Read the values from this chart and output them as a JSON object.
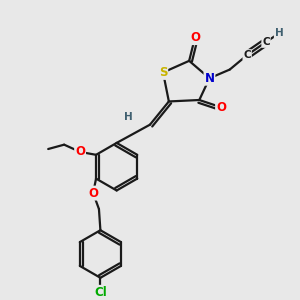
{
  "bg_color": "#e8e8e8",
  "atom_colors": {
    "S": "#c8b400",
    "N": "#0000cc",
    "O": "#ff0000",
    "Cl": "#00aa00",
    "C": "#1a1a1a",
    "H": "#406070"
  },
  "bond_color": "#1a1a1a",
  "bond_width": 1.6,
  "font_size_atom": 8.5,
  "font_size_H": 7.5,
  "figsize": [
    3.0,
    3.0
  ],
  "dpi": 100
}
